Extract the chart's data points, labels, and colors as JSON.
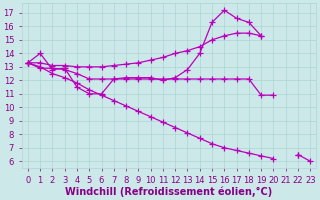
{
  "bg_color": "#cce8e8",
  "grid_color": "#aad4d4",
  "line_color": "#bb00bb",
  "marker": "+",
  "markersize": 4,
  "linewidth": 0.9,
  "xlabel": "Windchill (Refroidissement éolien,°C)",
  "xlabel_color": "#880088",
  "xlabel_fontsize": 7.0,
  "tick_color": "#880088",
  "tick_fontsize": 6.0,
  "xlim": [
    -0.5,
    23.5
  ],
  "ylim": [
    5.5,
    17.7
  ],
  "yticks": [
    6,
    7,
    8,
    9,
    10,
    11,
    12,
    13,
    14,
    15,
    16,
    17
  ],
  "xticks": [
    0,
    1,
    2,
    3,
    4,
    5,
    6,
    7,
    8,
    9,
    10,
    11,
    12,
    13,
    14,
    15,
    16,
    17,
    18,
    19,
    20,
    21,
    22,
    23
  ],
  "series": [
    {
      "x": [
        0,
        1,
        2,
        3,
        4,
        5,
        6,
        7,
        8,
        9,
        10,
        11,
        12,
        13,
        14,
        15,
        16,
        17,
        18,
        19,
        20,
        21,
        22,
        23
      ],
      "y": [
        13.3,
        14.0,
        12.8,
        12.9,
        11.5,
        11.0,
        11.0,
        12.1,
        12.2,
        12.2,
        12.2,
        12.0,
        12.2,
        12.8,
        14.0,
        16.3,
        17.2,
        16.6,
        16.3,
        15.3,
        null,
        null,
        null,
        null
      ]
    },
    {
      "x": [
        0,
        1,
        2,
        3,
        4,
        5,
        6,
        7,
        8,
        9,
        10,
        11,
        12,
        13,
        14,
        15,
        16,
        17,
        18,
        19,
        20,
        21,
        22,
        23
      ],
      "y": [
        13.3,
        13.3,
        13.1,
        13.1,
        13.0,
        13.0,
        13.0,
        13.1,
        13.2,
        13.3,
        13.5,
        13.7,
        14.0,
        14.2,
        14.5,
        15.0,
        15.3,
        15.5,
        15.5,
        15.3,
        null,
        null,
        null,
        null
      ]
    },
    {
      "x": [
        0,
        1,
        2,
        3,
        4,
        5,
        6,
        7,
        8,
        9,
        10,
        11,
        12,
        13,
        14,
        15,
        16,
        17,
        18,
        19,
        20,
        21,
        22,
        23
      ],
      "y": [
        13.3,
        12.9,
        12.9,
        12.8,
        12.5,
        12.1,
        12.1,
        12.1,
        12.1,
        12.1,
        12.1,
        12.1,
        12.1,
        12.1,
        12.1,
        12.1,
        12.1,
        12.1,
        12.1,
        10.9,
        10.9,
        null,
        6.5,
        null
      ]
    },
    {
      "x": [
        0,
        1,
        2,
        3,
        4,
        5,
        6,
        7,
        8,
        9,
        10,
        11,
        12,
        13,
        14,
        15,
        16,
        17,
        18,
        19,
        20,
        21,
        22,
        23
      ],
      "y": [
        13.3,
        13.0,
        12.5,
        12.2,
        11.8,
        11.3,
        10.9,
        10.5,
        10.1,
        9.7,
        9.3,
        8.9,
        8.5,
        8.1,
        7.7,
        7.3,
        7.0,
        6.8,
        6.6,
        6.4,
        6.2,
        null,
        6.5,
        6.0
      ]
    }
  ]
}
